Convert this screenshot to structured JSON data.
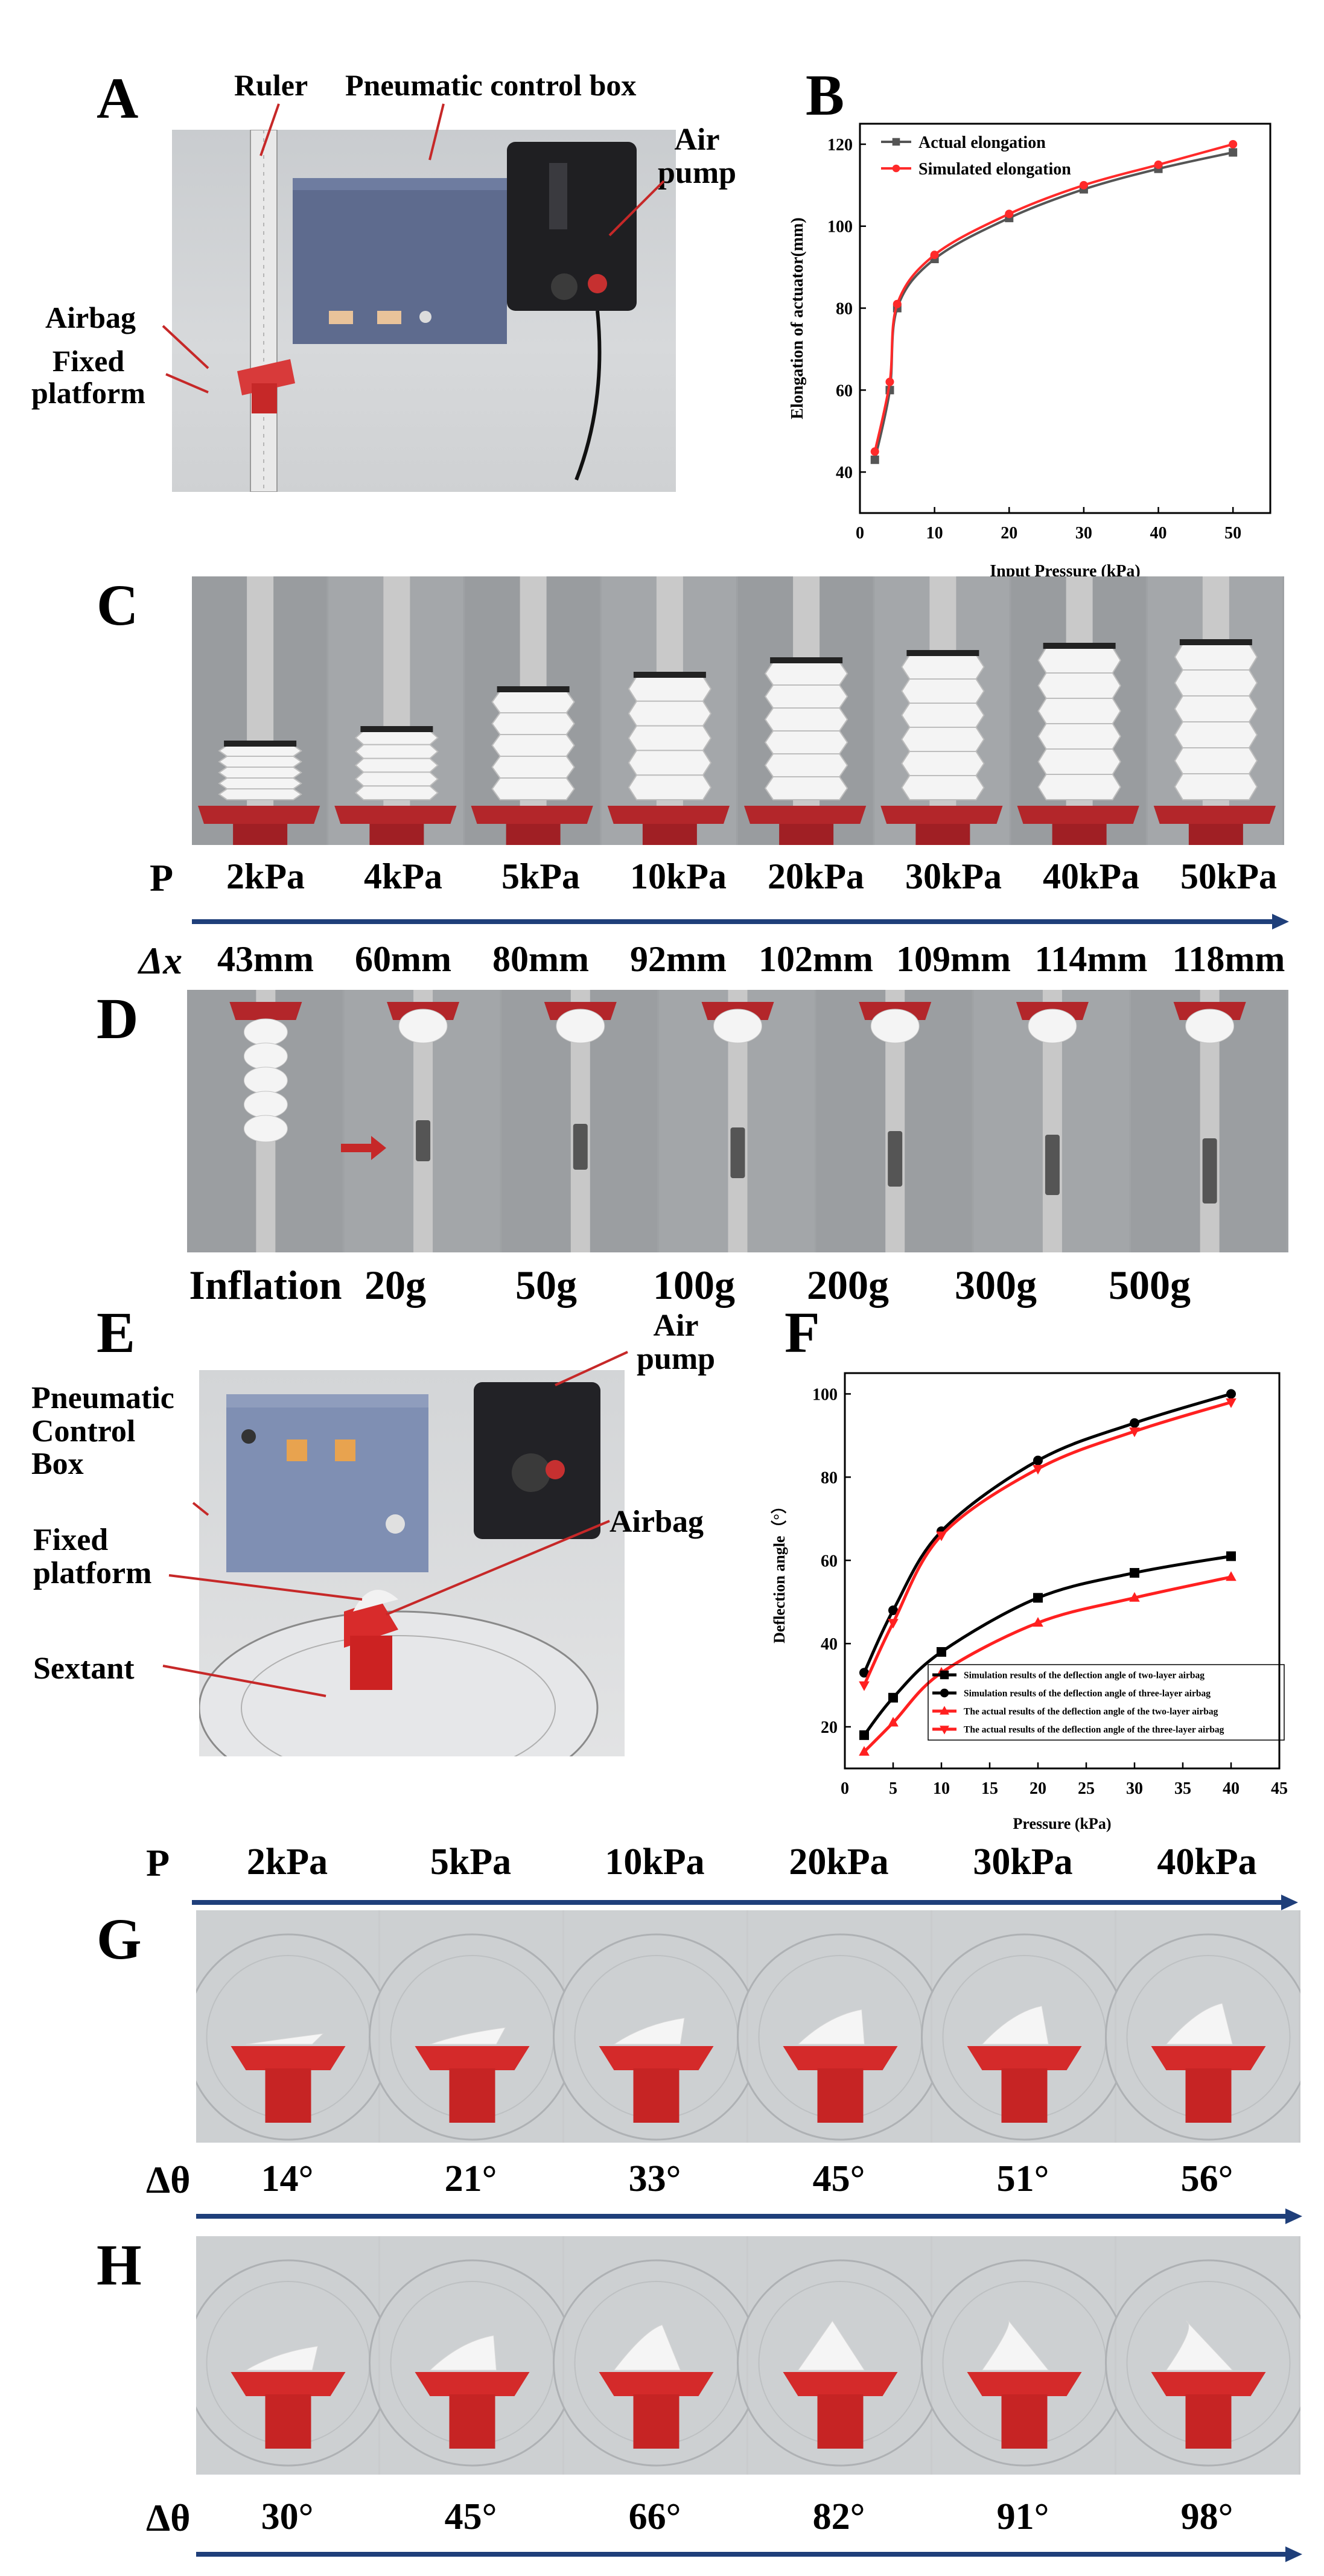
{
  "panels": {
    "A": {
      "letter": "A",
      "labels": {
        "ruler": "Ruler",
        "control_box": "Pneumatic control box",
        "air_pump": "Air\npump",
        "airbag": "Airbag",
        "fixed_platform": "Fixed\nplatform"
      }
    },
    "B": {
      "letter": "B"
    },
    "C": {
      "letter": "C",
      "p_symbol": "P",
      "dx_symbol": "Δx",
      "pressures": [
        "2kPa",
        "4kPa",
        "5kPa",
        "10kPa",
        "20kPa",
        "30kPa",
        "40kPa",
        "50kPa"
      ],
      "elongations": [
        "43mm",
        "60mm",
        "80mm",
        "92mm",
        "102mm",
        "109mm",
        "114mm",
        "118mm"
      ],
      "stack_levels": [
        0.3,
        0.38,
        0.6,
        0.68,
        0.76,
        0.8,
        0.84,
        0.86
      ]
    },
    "D": {
      "letter": "D",
      "loads": [
        "Inflation",
        "20g",
        "50g",
        "100g",
        "200g",
        "300g",
        "500g"
      ]
    },
    "E": {
      "letter": "E",
      "labels": {
        "control_box": "Pneumatic\nControl\nBox",
        "air_pump": "Air\npump",
        "airbag": "Airbag",
        "fixed_platform": "Fixed\nplatform",
        "sextant": "Sextant"
      }
    },
    "F": {
      "letter": "F"
    },
    "G": {
      "letter": "G",
      "p_symbol": "P",
      "pressures": [
        "2kPa",
        "5kPa",
        "10kPa",
        "20kPa",
        "30kPa",
        "40kPa"
      ],
      "theta_symbol": "Δθ",
      "angles": [
        "14°",
        "21°",
        "33°",
        "45°",
        "51°",
        "56°"
      ]
    },
    "H": {
      "letter": "H",
      "theta_symbol": "Δθ",
      "angles": [
        "30°",
        "45°",
        "66°",
        "82°",
        "91°",
        "98°"
      ]
    }
  },
  "chart_data": [
    {
      "type": "line",
      "panel": "B",
      "xlabel": "Input Pressure (kPa)",
      "ylabel": "Elongation of actuator(mm)",
      "xlim": [
        0,
        55
      ],
      "ylim": [
        30,
        125
      ],
      "xticks": [
        0,
        10,
        20,
        30,
        40,
        50
      ],
      "yticks": [
        40,
        60,
        80,
        100,
        120
      ],
      "legend": "top-left",
      "x": [
        2,
        4,
        5,
        10,
        20,
        30,
        40,
        50
      ],
      "series": [
        {
          "name": "Actual elongation",
          "color": "#555555",
          "marker": "square",
          "values": [
            43,
            60,
            80,
            92,
            102,
            109,
            114,
            118
          ]
        },
        {
          "name": "Simulated elongation",
          "color": "#ff2a2a",
          "marker": "circle",
          "values": [
            45,
            62,
            81,
            93,
            103,
            110,
            115,
            120
          ]
        }
      ]
    },
    {
      "type": "line",
      "panel": "F",
      "xlabel": "Pressure (kPa)",
      "ylabel": "Deflection angle（°）",
      "xlim": [
        0,
        45
      ],
      "ylim": [
        10,
        105
      ],
      "xticks": [
        0,
        5,
        10,
        15,
        20,
        25,
        30,
        35,
        40,
        45
      ],
      "yticks": [
        20,
        40,
        60,
        80,
        100
      ],
      "legend": "bottom-right",
      "x": [
        2,
        5,
        10,
        20,
        30,
        40
      ],
      "series": [
        {
          "name": "Simulation results of the deflection angle of  two-layer airbag",
          "color": "#000000",
          "marker": "square",
          "values": [
            18,
            27,
            38,
            51,
            57,
            61
          ]
        },
        {
          "name": "Simulation results of the deflection angle of  three-layer airbag",
          "color": "#000000",
          "marker": "circle",
          "values": [
            33,
            48,
            67,
            84,
            93,
            100
          ]
        },
        {
          "name": "The actual results of the deflection angle of the two-layer airbag",
          "color": "#ff2020",
          "marker": "triangle-up",
          "values": [
            14,
            21,
            33,
            45,
            51,
            56
          ]
        },
        {
          "name": "The actual results of the deflection angle of the three-layer airbag",
          "color": "#ff2020",
          "marker": "triangle-down",
          "values": [
            30,
            45,
            66,
            82,
            91,
            98
          ]
        }
      ]
    }
  ]
}
